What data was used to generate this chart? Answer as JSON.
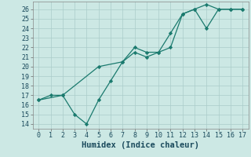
{
  "xlabel": "Humidex (Indice chaleur)",
  "line1_x": [
    0,
    1,
    2,
    3,
    4,
    5,
    6,
    7,
    8,
    9,
    10,
    11,
    12,
    13,
    14,
    15,
    16,
    17
  ],
  "line1_y": [
    16.5,
    17.0,
    17.0,
    15.0,
    14.0,
    16.5,
    18.5,
    20.5,
    22.0,
    21.5,
    21.5,
    23.5,
    25.5,
    26.0,
    26.5,
    26.0,
    26.0,
    26.0
  ],
  "line2_x": [
    0,
    2,
    5,
    7,
    8,
    9,
    10,
    11,
    12,
    13,
    14,
    15,
    16,
    17
  ],
  "line2_y": [
    16.5,
    17.0,
    20.0,
    20.5,
    21.5,
    21.0,
    21.5,
    22.0,
    25.5,
    26.0,
    24.0,
    26.0,
    26.0,
    26.0
  ],
  "line_color": "#1a7a6e",
  "bg_color": "#cce8e4",
  "grid_color": "#aaccca",
  "xlim": [
    -0.5,
    17.5
  ],
  "ylim": [
    13.5,
    26.8
  ],
  "xticks": [
    0,
    1,
    2,
    3,
    4,
    5,
    6,
    7,
    8,
    9,
    10,
    11,
    12,
    13,
    14,
    15,
    16,
    17
  ],
  "yticks": [
    14,
    15,
    16,
    17,
    18,
    19,
    20,
    21,
    22,
    23,
    24,
    25,
    26
  ],
  "tick_color": "#1a4a5c",
  "xlabel_fontsize": 7.5,
  "tick_fontsize": 6.0
}
